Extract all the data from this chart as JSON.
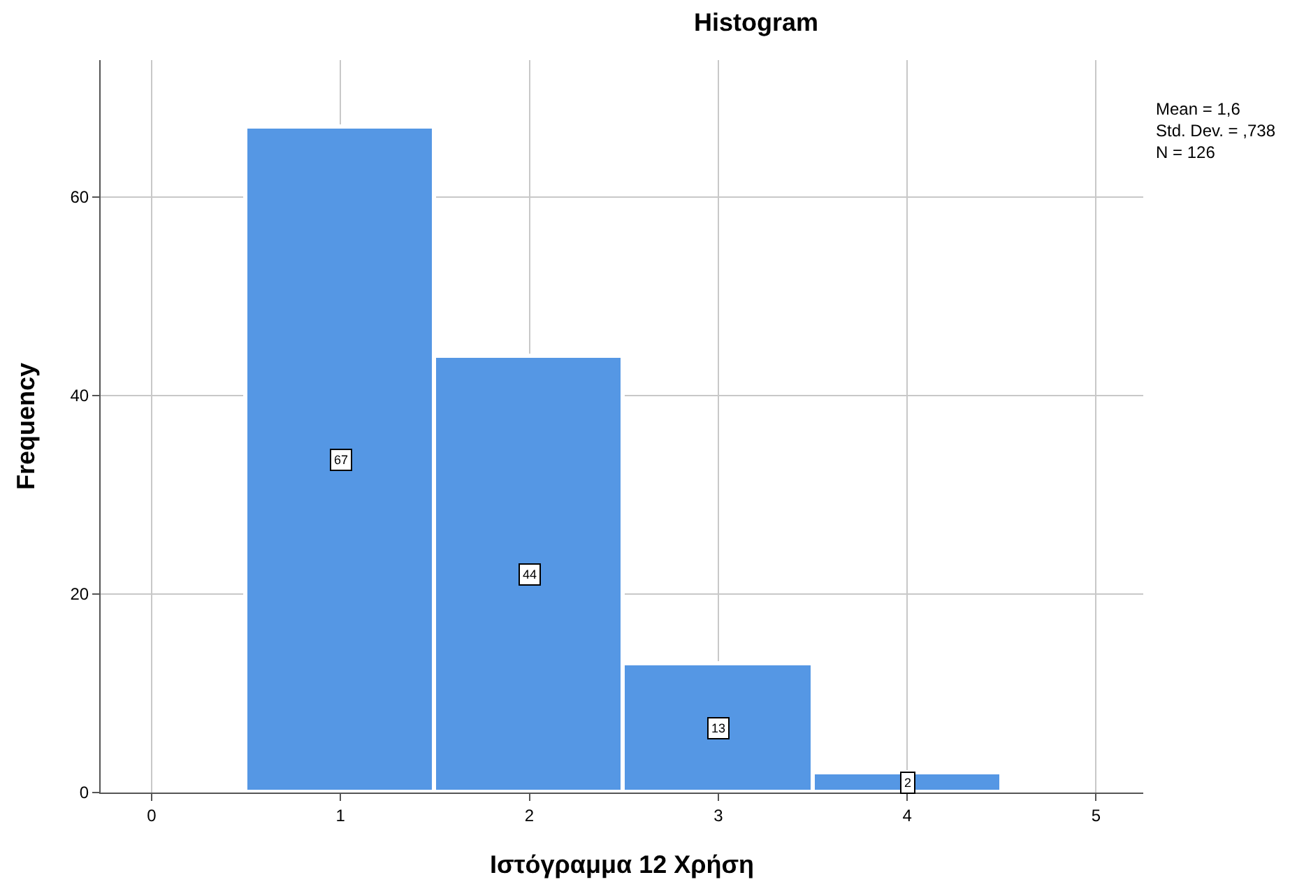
{
  "chart_data": {
    "type": "histogram",
    "title": "Histogram",
    "xlabel": "Ιστόγραμμα 12 Χρήση",
    "ylabel": "Frequency",
    "bins": [
      0.5,
      1.5,
      2.5,
      3.5,
      4.5
    ],
    "values": [
      67,
      44,
      13,
      2
    ],
    "color": "#5597e4",
    "xlim": [
      -0.27,
      5.25
    ],
    "xticks": [
      0,
      1,
      2,
      3,
      4,
      5
    ],
    "ylim": [
      0,
      73.8
    ],
    "yticks": [
      0,
      20,
      40,
      60
    ],
    "grid": true,
    "data_labels": true,
    "legend": false,
    "annotations": [
      "Mean = 1,6\nStd. Dev. = ,738\nN = 126"
    ]
  }
}
